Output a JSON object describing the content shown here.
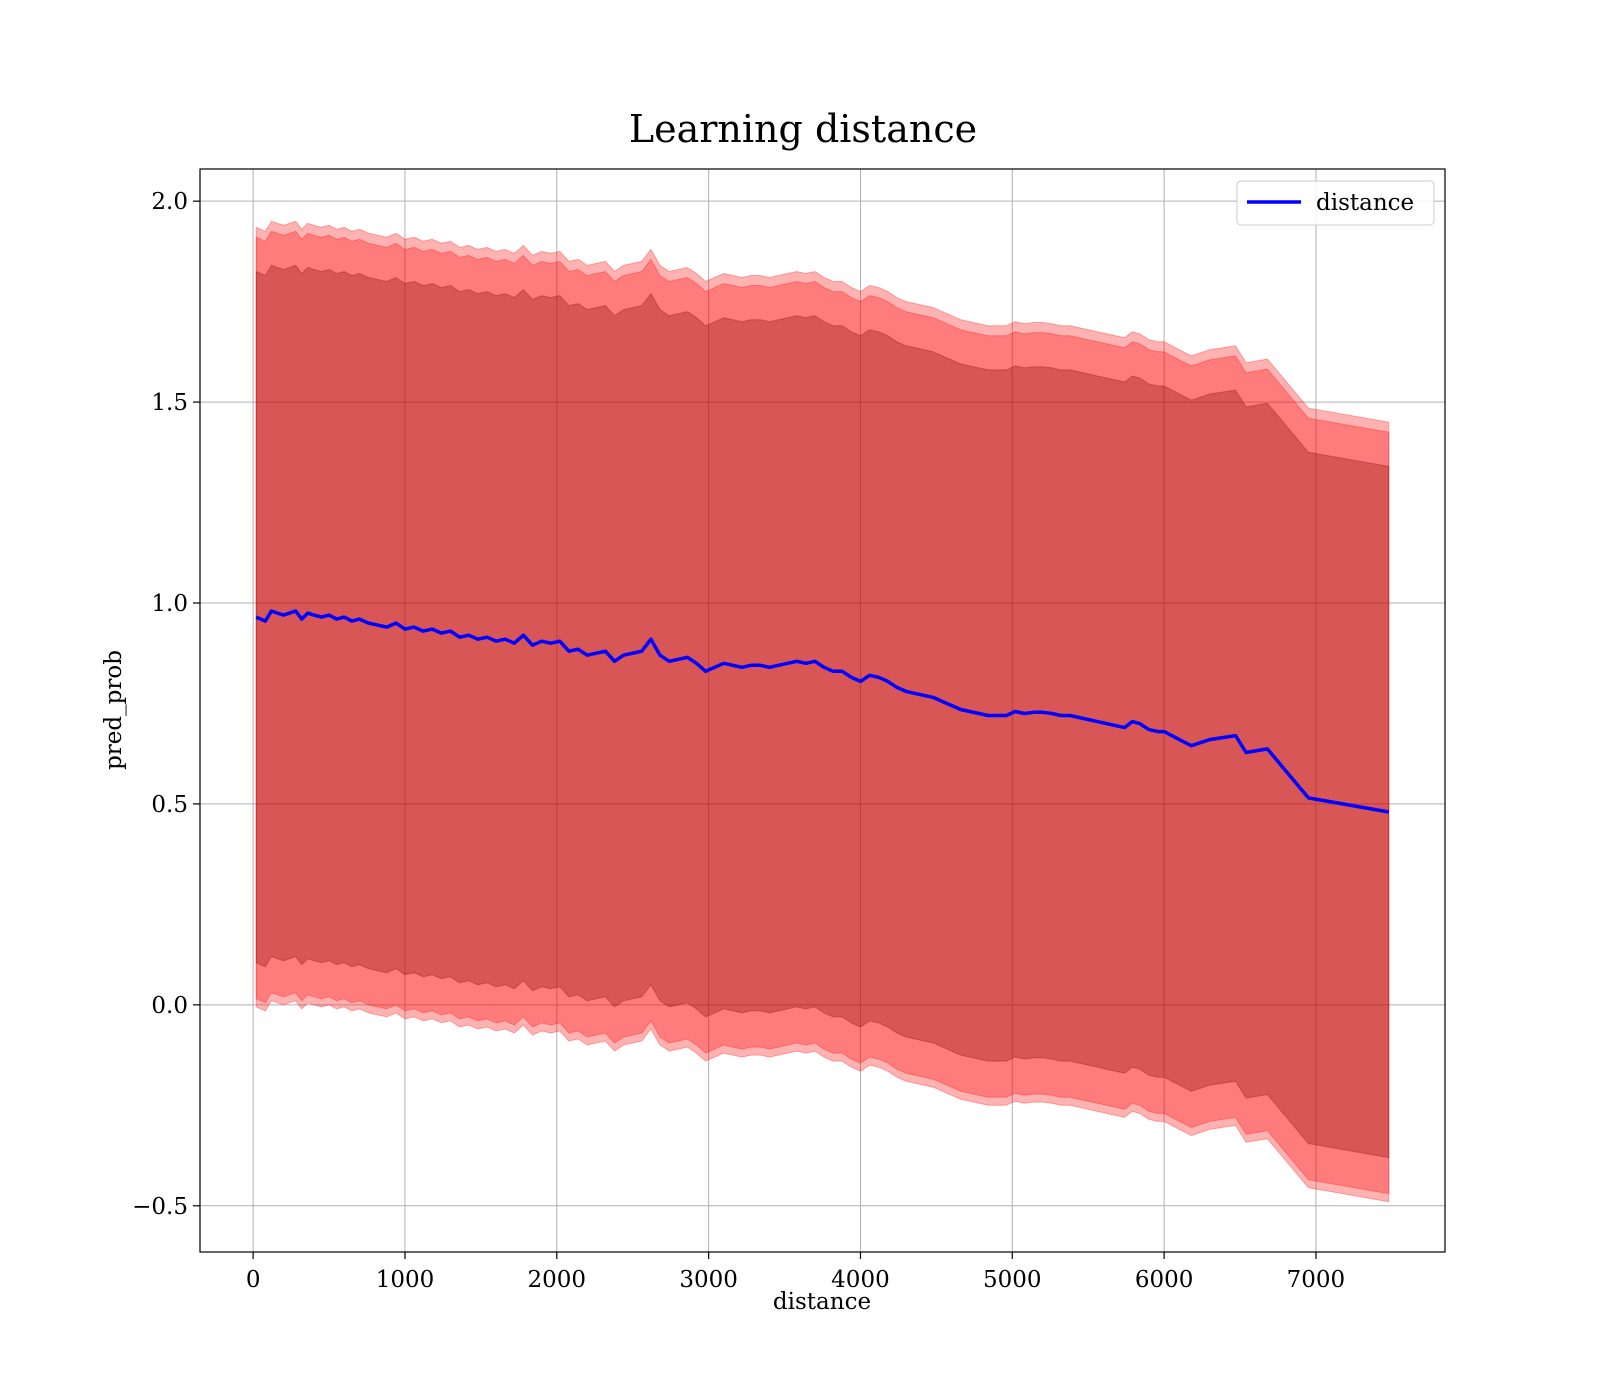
{
  "chart_data": {
    "type": "line",
    "title": "Learning distance",
    "xlabel": "distance",
    "ylabel": "pred_prob",
    "xlim": [
      -350,
      7850
    ],
    "ylim": [
      -0.615,
      2.08
    ],
    "xticks": [
      0,
      1000,
      2000,
      3000,
      4000,
      5000,
      6000,
      7000
    ],
    "yticks": [
      -0.5,
      0.0,
      0.5,
      1.0,
      1.5,
      2.0
    ],
    "ytick_labels": [
      "−0.5",
      "0.0",
      "0.5",
      "1.0",
      "1.5",
      "2.0"
    ],
    "grid": true,
    "legend": {
      "placement": "top-right",
      "entries": [
        "distance"
      ]
    },
    "colors": {
      "line": "#0000ff",
      "outer_band": "#ff0000",
      "inner_band": "#800000"
    },
    "series": [
      {
        "name": "distance",
        "x": [
          20,
          80,
          120,
          160,
          200,
          240,
          280,
          320,
          360,
          400,
          450,
          500,
          550,
          600,
          650,
          700,
          760,
          820,
          880,
          940,
          1000,
          1060,
          1120,
          1180,
          1240,
          1300,
          1360,
          1420,
          1480,
          1540,
          1600,
          1660,
          1720,
          1780,
          1840,
          1900,
          1960,
          2020,
          2080,
          2140,
          2200,
          2260,
          2320,
          2380,
          2440,
          2500,
          2560,
          2620,
          2680,
          2740,
          2800,
          2860,
          2920,
          2980,
          3040,
          3100,
          3160,
          3220,
          3280,
          3340,
          3400,
          3460,
          3520,
          3580,
          3640,
          3700,
          3760,
          3820,
          3880,
          3940,
          4000,
          4060,
          4120,
          4180,
          4240,
          4300,
          4360,
          4420,
          4480,
          4540,
          4600,
          4660,
          4720,
          4780,
          4840,
          4900,
          4960,
          5020,
          5080,
          5140,
          5200,
          5260,
          5320,
          5380,
          5440,
          5500,
          5560,
          5620,
          5680,
          5740,
          5790,
          5840,
          5900,
          5960,
          6000,
          6050,
          6100,
          6180,
          6300,
          6470,
          6540,
          6680,
          6950,
          7480
        ],
        "y": [
          0.965,
          0.955,
          0.98,
          0.975,
          0.97,
          0.975,
          0.98,
          0.96,
          0.975,
          0.97,
          0.965,
          0.97,
          0.96,
          0.965,
          0.955,
          0.96,
          0.95,
          0.945,
          0.94,
          0.95,
          0.935,
          0.94,
          0.93,
          0.935,
          0.925,
          0.93,
          0.915,
          0.92,
          0.91,
          0.915,
          0.905,
          0.91,
          0.9,
          0.92,
          0.895,
          0.905,
          0.9,
          0.905,
          0.88,
          0.885,
          0.87,
          0.875,
          0.88,
          0.855,
          0.87,
          0.875,
          0.88,
          0.91,
          0.87,
          0.855,
          0.86,
          0.865,
          0.85,
          0.83,
          0.84,
          0.85,
          0.845,
          0.84,
          0.845,
          0.845,
          0.84,
          0.845,
          0.85,
          0.855,
          0.85,
          0.855,
          0.84,
          0.83,
          0.83,
          0.815,
          0.805,
          0.82,
          0.815,
          0.805,
          0.79,
          0.78,
          0.775,
          0.77,
          0.765,
          0.755,
          0.745,
          0.735,
          0.73,
          0.725,
          0.72,
          0.72,
          0.72,
          0.73,
          0.725,
          0.728,
          0.728,
          0.725,
          0.72,
          0.72,
          0.715,
          0.71,
          0.705,
          0.7,
          0.695,
          0.69,
          0.705,
          0.7,
          0.685,
          0.68,
          0.68,
          0.67,
          0.66,
          0.645,
          0.66,
          0.67,
          0.628,
          0.637,
          0.515,
          0.48
        ]
      }
    ],
    "bands": [
      {
        "offset_upper": 0.97,
        "offset_lower": 0.97,
        "opacity": 0.3
      },
      {
        "offset_upper": 0.945,
        "offset_lower": 0.95,
        "opacity": 0.3
      },
      {
        "offset_upper": 0.86,
        "offset_lower": 0.86,
        "opacity": 0.3
      }
    ]
  }
}
